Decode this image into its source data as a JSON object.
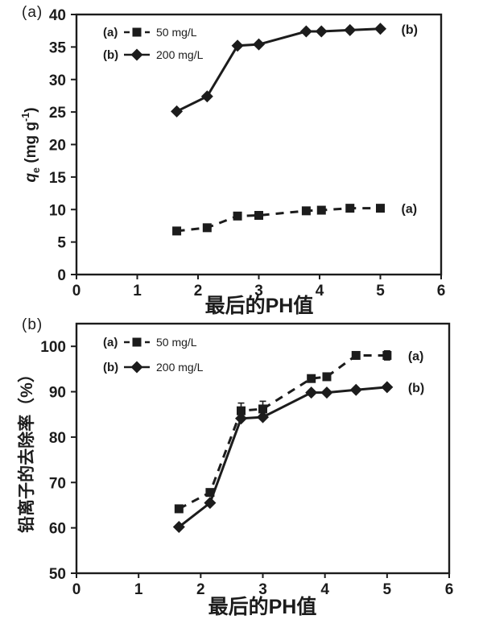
{
  "page": {
    "background": "#ffffff",
    "ink_color": "#1c1c1c"
  },
  "chart_data": [
    {
      "type": "line",
      "panel_label": "(a)",
      "xlabel": "最后的PH值",
      "ylabel_segments": [
        {
          "t": "q",
          "style": "italic"
        },
        {
          "t": "e",
          "style": "sub"
        },
        {
          "t": " (mg g",
          "style": "normal"
        },
        {
          "t": "-1",
          "style": "sup"
        },
        {
          "t": ")",
          "style": "normal"
        }
      ],
      "xlim": [
        0,
        6
      ],
      "ylim": [
        0,
        40
      ],
      "xticks": [
        0,
        1,
        2,
        3,
        4,
        5,
        6
      ],
      "yticks": [
        0,
        5,
        10,
        15,
        20,
        25,
        30,
        35,
        40
      ],
      "grid": false,
      "legend_position": "top-left-inside",
      "legend": [
        {
          "key": "(a)",
          "label": "50 mg/L",
          "marker": "square",
          "line": "dashed"
        },
        {
          "key": "(b)",
          "label": "200 mg/L",
          "marker": "diamond",
          "line": "solid"
        }
      ],
      "series": [
        {
          "id": "50mgL",
          "name": "50 mg/L",
          "end_label": "(a)",
          "marker": "square",
          "line": "dashed",
          "x": [
            1.65,
            2.15,
            2.65,
            3.0,
            3.78,
            4.03,
            4.5,
            5.0
          ],
          "y": [
            6.7,
            7.2,
            9.0,
            9.1,
            9.8,
            9.9,
            10.2,
            10.2
          ],
          "err": [
            0,
            0,
            0,
            0,
            0,
            0,
            0,
            0
          ]
        },
        {
          "id": "200mgL",
          "name": "200 mg/L",
          "end_label": "(b)",
          "marker": "diamond",
          "line": "solid",
          "x": [
            1.65,
            2.15,
            2.65,
            3.0,
            3.78,
            4.03,
            4.5,
            5.0
          ],
          "y": [
            25.1,
            27.4,
            35.2,
            35.4,
            37.4,
            37.4,
            37.6,
            37.8
          ],
          "err": [
            0,
            0,
            0,
            0,
            0,
            0,
            0,
            0
          ]
        }
      ]
    },
    {
      "type": "line",
      "panel_label": "(b)",
      "xlabel": "最后的PH值",
      "ylabel_segments": [
        {
          "t": "铅离子的去除率（%）",
          "style": "normal"
        }
      ],
      "xlim": [
        0,
        6
      ],
      "ylim": [
        50,
        105
      ],
      "xticks": [
        0,
        1,
        2,
        3,
        4,
        5,
        6
      ],
      "yticks": [
        50,
        60,
        70,
        80,
        90,
        100
      ],
      "grid": false,
      "legend_position": "top-left-inside",
      "legend": [
        {
          "key": "(a)",
          "label": "50 mg/L",
          "marker": "square",
          "line": "dashed"
        },
        {
          "key": "(b)",
          "label": "200 mg/L",
          "marker": "diamond",
          "line": "solid"
        }
      ],
      "series": [
        {
          "id": "50mgL",
          "name": "50 mg/L",
          "end_label": "(a)",
          "marker": "square",
          "line": "dashed",
          "x": [
            1.65,
            2.15,
            2.65,
            3.0,
            3.78,
            4.03,
            4.5,
            5.0
          ],
          "y": [
            64.2,
            67.8,
            85.8,
            86.2,
            92.9,
            93.3,
            98.0,
            98.0
          ],
          "err": [
            0,
            0,
            1.7,
            1.7,
            0,
            0,
            0,
            1.0
          ]
        },
        {
          "id": "200mgL",
          "name": "200 mg/L",
          "end_label": "(b)",
          "marker": "diamond",
          "line": "solid",
          "x": [
            1.65,
            2.15,
            2.65,
            3.0,
            3.78,
            4.03,
            4.5,
            5.0
          ],
          "y": [
            60.2,
            65.5,
            84.1,
            84.4,
            89.8,
            89.8,
            90.4,
            91.0
          ],
          "err": [
            0,
            0,
            0,
            0,
            0,
            0,
            0,
            0
          ]
        }
      ]
    }
  ]
}
